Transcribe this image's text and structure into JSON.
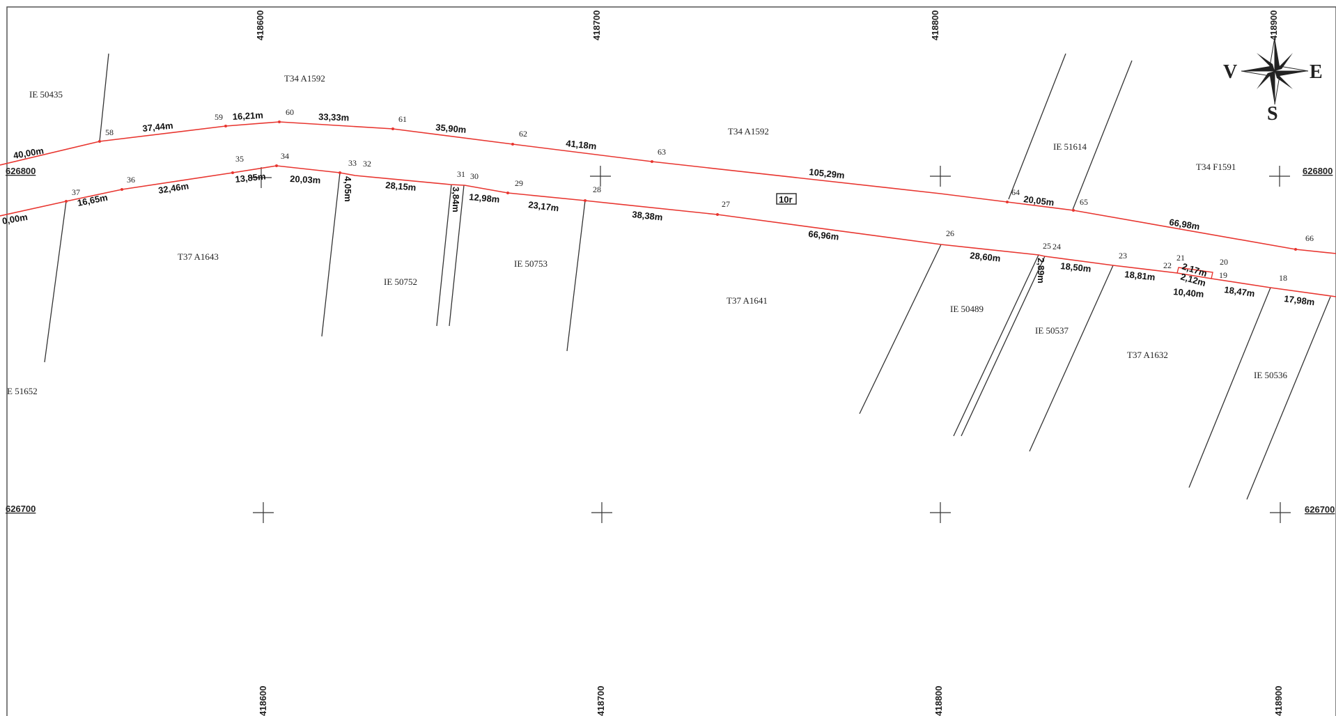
{
  "grid": {
    "x_labels": [
      "418600",
      "418700",
      "418800",
      "418900"
    ],
    "y_labels": [
      "626800",
      "626700"
    ]
  },
  "compass": {
    "west": "V",
    "east": "E",
    "south": "S"
  },
  "marker": "10r",
  "parcels": [
    "IE 50435",
    "T34 A1592",
    "T34 A1592",
    "IE 51614",
    "T34 F1591",
    "T37 A1643",
    "IE 50752",
    "IE 50753",
    "T37 A1641",
    "IE 50489",
    "IE 50537",
    "T37 A1632",
    "IE 50536",
    "E 51652"
  ],
  "points": [
    "58",
    "59",
    "60",
    "61",
    "62",
    "63",
    "64",
    "65",
    "66",
    "37",
    "36",
    "35",
    "34",
    "33",
    "32",
    "31",
    "30",
    "29",
    "28",
    "27",
    "26",
    "25",
    "24",
    "23",
    "22",
    "21",
    "20",
    "19",
    "18"
  ],
  "distances": [
    "40,00m",
    "37,44m",
    "16,21m",
    "33,33m",
    "35,90m",
    "41,18m",
    "105,29m",
    "20,05m",
    "66,98m",
    "0,00m",
    "16,65m",
    "32,46m",
    "13,85m",
    "20,03m",
    "4,05m",
    "28,15m",
    "3,84m",
    "12,98m",
    "23,17m",
    "38,38m",
    "66,96m",
    "28,60m",
    "2,89m",
    "18,50m",
    "18,81m",
    "2,17m",
    "2,12m",
    "10,40m",
    "18,47m",
    "17,98m"
  ]
}
